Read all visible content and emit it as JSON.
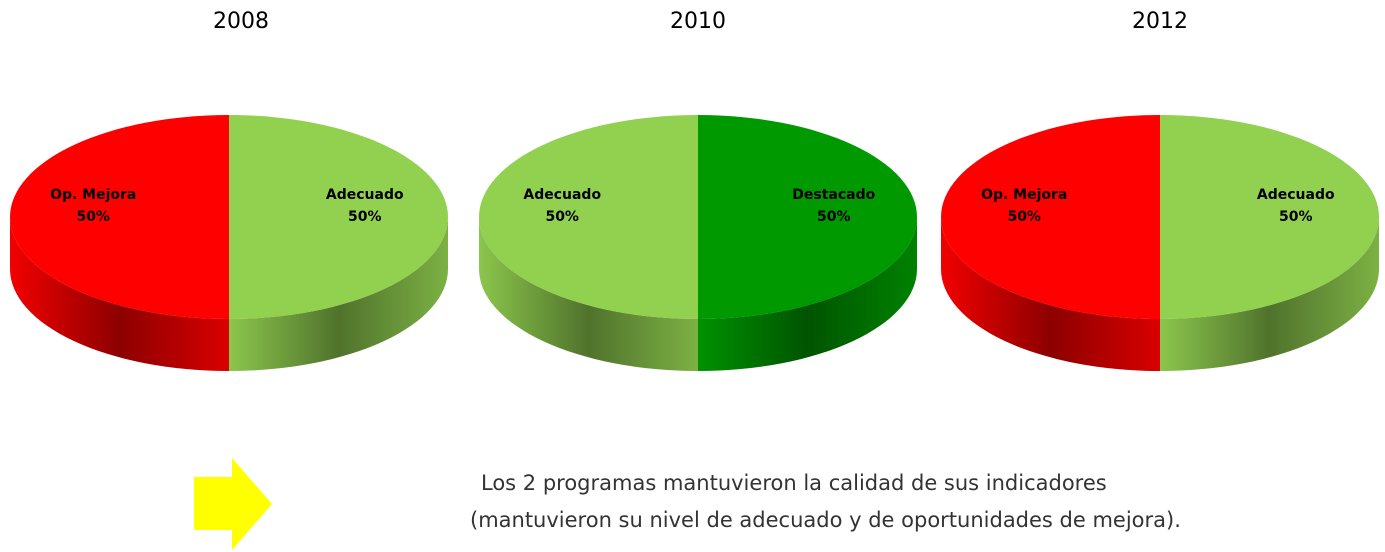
{
  "chart_data": [
    {
      "type": "pie",
      "title": "2008",
      "categories": [
        "Op. Mejora",
        "Adecuado"
      ],
      "values": [
        50,
        50
      ],
      "value_labels": [
        "50%",
        "50%"
      ],
      "colors": [
        "#ff0000",
        "#92d050"
      ]
    },
    {
      "type": "pie",
      "title": "2010",
      "categories": [
        "Adecuado",
        "Destacado"
      ],
      "values": [
        50,
        50
      ],
      "value_labels": [
        "50%",
        "50%"
      ],
      "colors": [
        "#92d050",
        "#009900"
      ]
    },
    {
      "type": "pie",
      "title": "2012",
      "categories": [
        "Op. Mejora",
        "Adecuado"
      ],
      "values": [
        50,
        50
      ],
      "value_labels": [
        "50%",
        "50%"
      ],
      "colors": [
        "#ff0000",
        "#92d050"
      ]
    }
  ],
  "note": [
    "Los 2 programas mantuvieron la calidad de sus indicadores",
    "(mantuvieron su nivel de adecuado y de oportunidades de mejora)."
  ]
}
